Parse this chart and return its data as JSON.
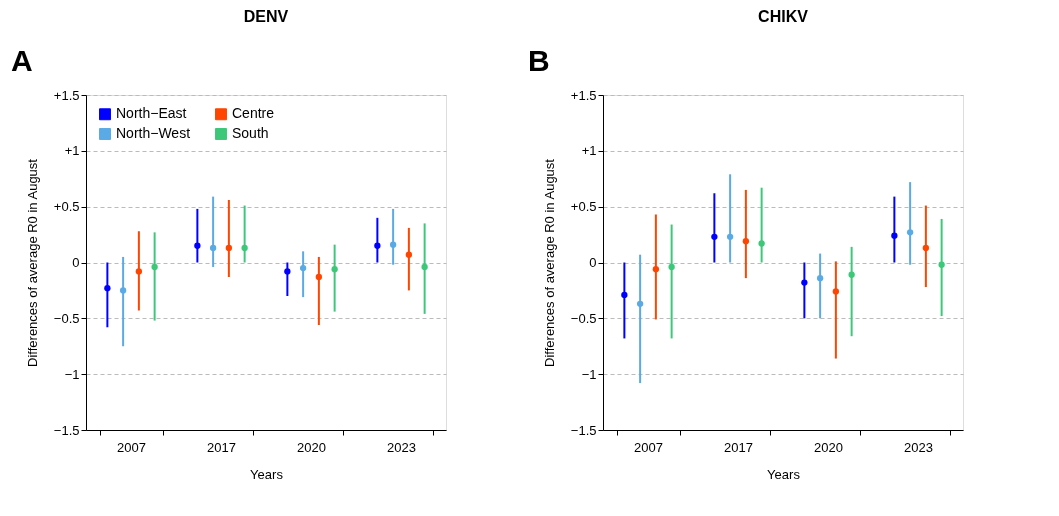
{
  "chart_data": [
    {
      "type": "scatter",
      "title": "DENV",
      "xlabel": "Years",
      "ylabel": "Differences of average R0 in August",
      "annotations": [
        "A"
      ],
      "categories": [
        "2007",
        "2017",
        "2020",
        "2023"
      ],
      "marker": "circle",
      "legend": "top left",
      "grid": "y",
      "ylim": [
        -1.5,
        1.5
      ],
      "yticks": [
        {
          "value": 1.5,
          "label": "+1.5"
        },
        {
          "value": 1,
          "label": "+1"
        },
        {
          "value": 0.5,
          "label": "+0.5"
        },
        {
          "value": 0,
          "label": "0"
        },
        {
          "value": -0.5,
          "label": "−0.5"
        },
        {
          "value": -1,
          "label": "−1"
        },
        {
          "value": -1.5,
          "label": "−1.5"
        }
      ],
      "series": [
        {
          "name": "North−East",
          "color": "#0000ff",
          "values": [
            -0.23,
            0.15,
            -0.08,
            0.15
          ],
          "errors": [
            [
              -0.58,
              0
            ],
            [
              0,
              0.48
            ],
            [
              -0.3,
              0
            ],
            [
              0,
              0.4
            ]
          ]
        },
        {
          "name": "North−West",
          "color": "#5aaae6",
          "values": [
            -0.25,
            0.13,
            -0.05,
            0.16
          ],
          "errors": [
            [
              -0.75,
              0.05
            ],
            [
              -0.04,
              0.59
            ],
            [
              -0.31,
              0.1
            ],
            [
              -0.02,
              0.48
            ]
          ]
        },
        {
          "name": "Centre",
          "color": "#ff4500",
          "values": [
            -0.08,
            0.13,
            -0.13,
            0.07
          ],
          "errors": [
            [
              -0.43,
              0.28
            ],
            [
              -0.13,
              0.56
            ],
            [
              -0.56,
              0.05
            ],
            [
              -0.25,
              0.31
            ]
          ]
        },
        {
          "name": "South",
          "color": "#3cc878",
          "values": [
            -0.04,
            0.13,
            -0.06,
            -0.04
          ],
          "errors": [
            [
              -0.52,
              0.27
            ],
            [
              0,
              0.51
            ],
            [
              -0.44,
              0.16
            ],
            [
              -0.46,
              0.35
            ]
          ]
        }
      ]
    },
    {
      "type": "scatter",
      "title": "CHIKV",
      "xlabel": "Years",
      "ylabel": "Differences of average R0 in August",
      "annotations": [
        "B"
      ],
      "categories": [
        "2007",
        "2017",
        "2020",
        "2023"
      ],
      "marker": "circle",
      "legend": "top left",
      "grid": "y",
      "ylim": [
        -1.5,
        1.5
      ],
      "yticks": [
        {
          "value": 1.5,
          "label": "+1.5"
        },
        {
          "value": 1,
          "label": "+1"
        },
        {
          "value": 0.5,
          "label": "+0.5"
        },
        {
          "value": 0,
          "label": "0"
        },
        {
          "value": -0.5,
          "label": "−0.5"
        },
        {
          "value": -1,
          "label": "−1"
        },
        {
          "value": -1.5,
          "label": "−1.5"
        }
      ],
      "series": [
        {
          "name": "North−East",
          "color": "#0000ff",
          "values": [
            -0.29,
            0.23,
            -0.18,
            0.24
          ],
          "errors": [
            [
              -0.68,
              0
            ],
            [
              0,
              0.62
            ],
            [
              -0.5,
              0
            ],
            [
              0,
              0.59
            ]
          ]
        },
        {
          "name": "North−West",
          "color": "#5aaae6",
          "values": [
            -0.37,
            0.23,
            -0.14,
            0.27
          ],
          "errors": [
            [
              -1.08,
              0.07
            ],
            [
              0,
              0.79
            ],
            [
              -0.5,
              0.08
            ],
            [
              -0.02,
              0.72
            ]
          ]
        },
        {
          "name": "Centre",
          "color": "#ff4500",
          "values": [
            -0.06,
            0.19,
            -0.26,
            0.13
          ],
          "errors": [
            [
              -0.51,
              0.43
            ],
            [
              -0.14,
              0.65
            ],
            [
              -0.86,
              0.01
            ],
            [
              -0.22,
              0.51
            ]
          ]
        },
        {
          "name": "South",
          "color": "#3cc878",
          "values": [
            -0.04,
            0.17,
            -0.11,
            -0.02
          ],
          "errors": [
            [
              -0.68,
              0.34
            ],
            [
              0,
              0.67
            ],
            [
              -0.66,
              0.14
            ],
            [
              -0.48,
              0.39
            ]
          ]
        }
      ]
    }
  ]
}
